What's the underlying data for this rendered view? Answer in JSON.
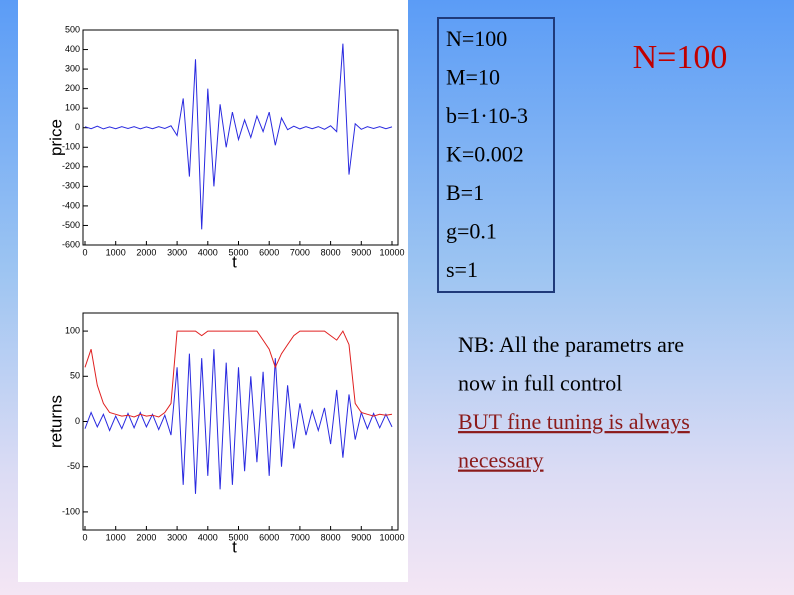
{
  "chart_data": [
    {
      "type": "line",
      "x_label": "t",
      "y_label": "price",
      "xlim": [
        0,
        10000
      ],
      "ylim": [
        -600,
        500
      ],
      "xticks": [
        0,
        1000,
        2000,
        3000,
        4000,
        5000,
        6000,
        7000,
        8000,
        9000,
        10000
      ],
      "yticks": [
        -600,
        -500,
        -400,
        -300,
        -200,
        -100,
        0,
        100,
        200,
        300,
        400,
        500
      ],
      "x": [
        0,
        200,
        400,
        600,
        800,
        1000,
        1200,
        1400,
        1600,
        1800,
        2000,
        2200,
        2400,
        2600,
        2800,
        3000,
        3200,
        3400,
        3600,
        3800,
        4000,
        4200,
        4400,
        4600,
        4800,
        5000,
        5200,
        5400,
        5600,
        5800,
        6000,
        6200,
        6400,
        6600,
        6800,
        7000,
        7200,
        7400,
        7600,
        7800,
        8000,
        8200,
        8400,
        8600,
        8800,
        9000,
        9200,
        9400,
        9600,
        9800,
        10000
      ],
      "series": [
        {
          "color": "#2a2ae0",
          "values": [
            5,
            -5,
            8,
            -6,
            4,
            -5,
            6,
            -4,
            5,
            -6,
            4,
            -5,
            6,
            -4,
            10,
            -40,
            150,
            -250,
            350,
            -520,
            200,
            -300,
            120,
            -100,
            80,
            -60,
            40,
            -50,
            60,
            -20,
            80,
            -90,
            50,
            -10,
            8,
            -6,
            5,
            -5,
            6,
            -8,
            10,
            -20,
            430,
            -240,
            20,
            -8,
            5,
            -4,
            6,
            -5,
            4
          ]
        }
      ]
    },
    {
      "type": "line",
      "x_label": "t",
      "y_label": "returns",
      "xlim": [
        0,
        10000
      ],
      "ylim": [
        -120,
        120
      ],
      "xticks": [
        0,
        1000,
        2000,
        3000,
        4000,
        5000,
        6000,
        7000,
        8000,
        9000,
        10000
      ],
      "yticks": [
        -100,
        -50,
        0,
        50,
        100
      ],
      "x": [
        0,
        200,
        400,
        600,
        800,
        1000,
        1200,
        1400,
        1600,
        1800,
        2000,
        2200,
        2400,
        2600,
        2800,
        3000,
        3200,
        3400,
        3600,
        3800,
        4000,
        4200,
        4400,
        4600,
        4800,
        5000,
        5200,
        5400,
        5600,
        5800,
        6000,
        6200,
        6400,
        6600,
        6800,
        7000,
        7200,
        7400,
        7600,
        7800,
        8000,
        8200,
        8400,
        8600,
        8800,
        9000,
        9200,
        9400,
        9600,
        9800,
        10000
      ],
      "series": [
        {
          "color": "#2a2ae0",
          "values": [
            -8,
            10,
            -6,
            8,
            -10,
            6,
            -8,
            9,
            -7,
            10,
            -6,
            8,
            -9,
            7,
            -15,
            60,
            -70,
            75,
            -80,
            70,
            -60,
            80,
            -75,
            65,
            -70,
            60,
            -55,
            50,
            -45,
            55,
            -60,
            70,
            -50,
            40,
            -30,
            20,
            -15,
            12,
            -10,
            15,
            -25,
            35,
            -40,
            30,
            -20,
            10,
            -8,
            9,
            -7,
            8,
            -6
          ]
        },
        {
          "color": "#e02020",
          "values": [
            60,
            80,
            40,
            20,
            10,
            8,
            6,
            7,
            5,
            8,
            6,
            7,
            5,
            10,
            20,
            100,
            100,
            100,
            100,
            95,
            100,
            100,
            100,
            100,
            100,
            100,
            100,
            100,
            100,
            90,
            80,
            60,
            75,
            85,
            95,
            100,
            100,
            100,
            100,
            100,
            95,
            90,
            100,
            85,
            20,
            10,
            8,
            6,
            8,
            7,
            8
          ]
        }
      ]
    }
  ],
  "parameters": [
    "N=100",
    "M=10",
    "b=1·10-3",
    "K=0.002",
    "B=1",
    "g=0.1",
    "s=1"
  ],
  "heading": "N=100",
  "notes": [
    "NB: All the parametrs are",
    "now in full control",
    "BUT fine tuning is always",
    "necessary"
  ]
}
